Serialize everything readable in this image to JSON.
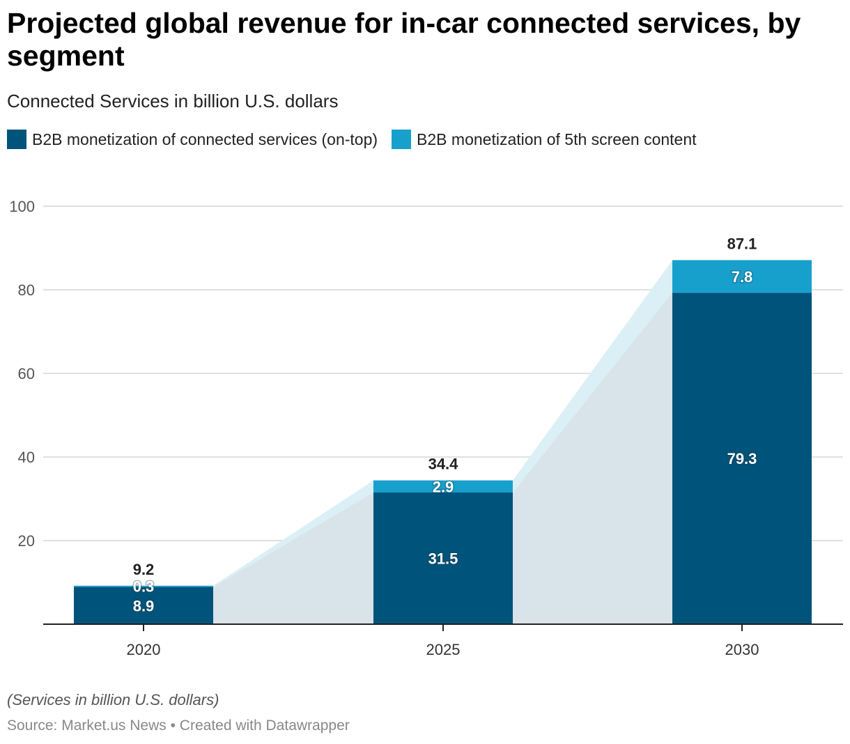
{
  "title": "Projected global revenue for in-car connected services, by segment",
  "subtitle": "Connected Services in billion U.S. dollars",
  "note": "(Services in billion U.S. dollars)",
  "source": "Source: Market.us News",
  "credit": "Created with Datawrapper",
  "separator": "•",
  "colors": {
    "dark": "#00537a",
    "light": "#18a0cc",
    "area_dark": "#d9e3ea",
    "area_light": "#dbeff6"
  },
  "chart_data": {
    "type": "bar",
    "stacked": true,
    "categories": [
      "2020",
      "2025",
      "2030"
    ],
    "series": [
      {
        "name": "B2B monetization of connected services (on-top)",
        "values": [
          8.9,
          31.5,
          79.3
        ]
      },
      {
        "name": "B2B monetization of 5th screen content",
        "values": [
          0.3,
          2.9,
          7.8
        ]
      }
    ],
    "totals": [
      "9.2",
      "34.4",
      "87.1"
    ],
    "value_labels": [
      [
        "8.9",
        "31.5",
        "79.3"
      ],
      [
        "0.3",
        "2.9",
        "7.8"
      ]
    ],
    "ylim": [
      0,
      100
    ],
    "yticks": [
      "20",
      "40",
      "60",
      "80",
      "100"
    ],
    "grid": true,
    "legend_position": "top-left"
  }
}
